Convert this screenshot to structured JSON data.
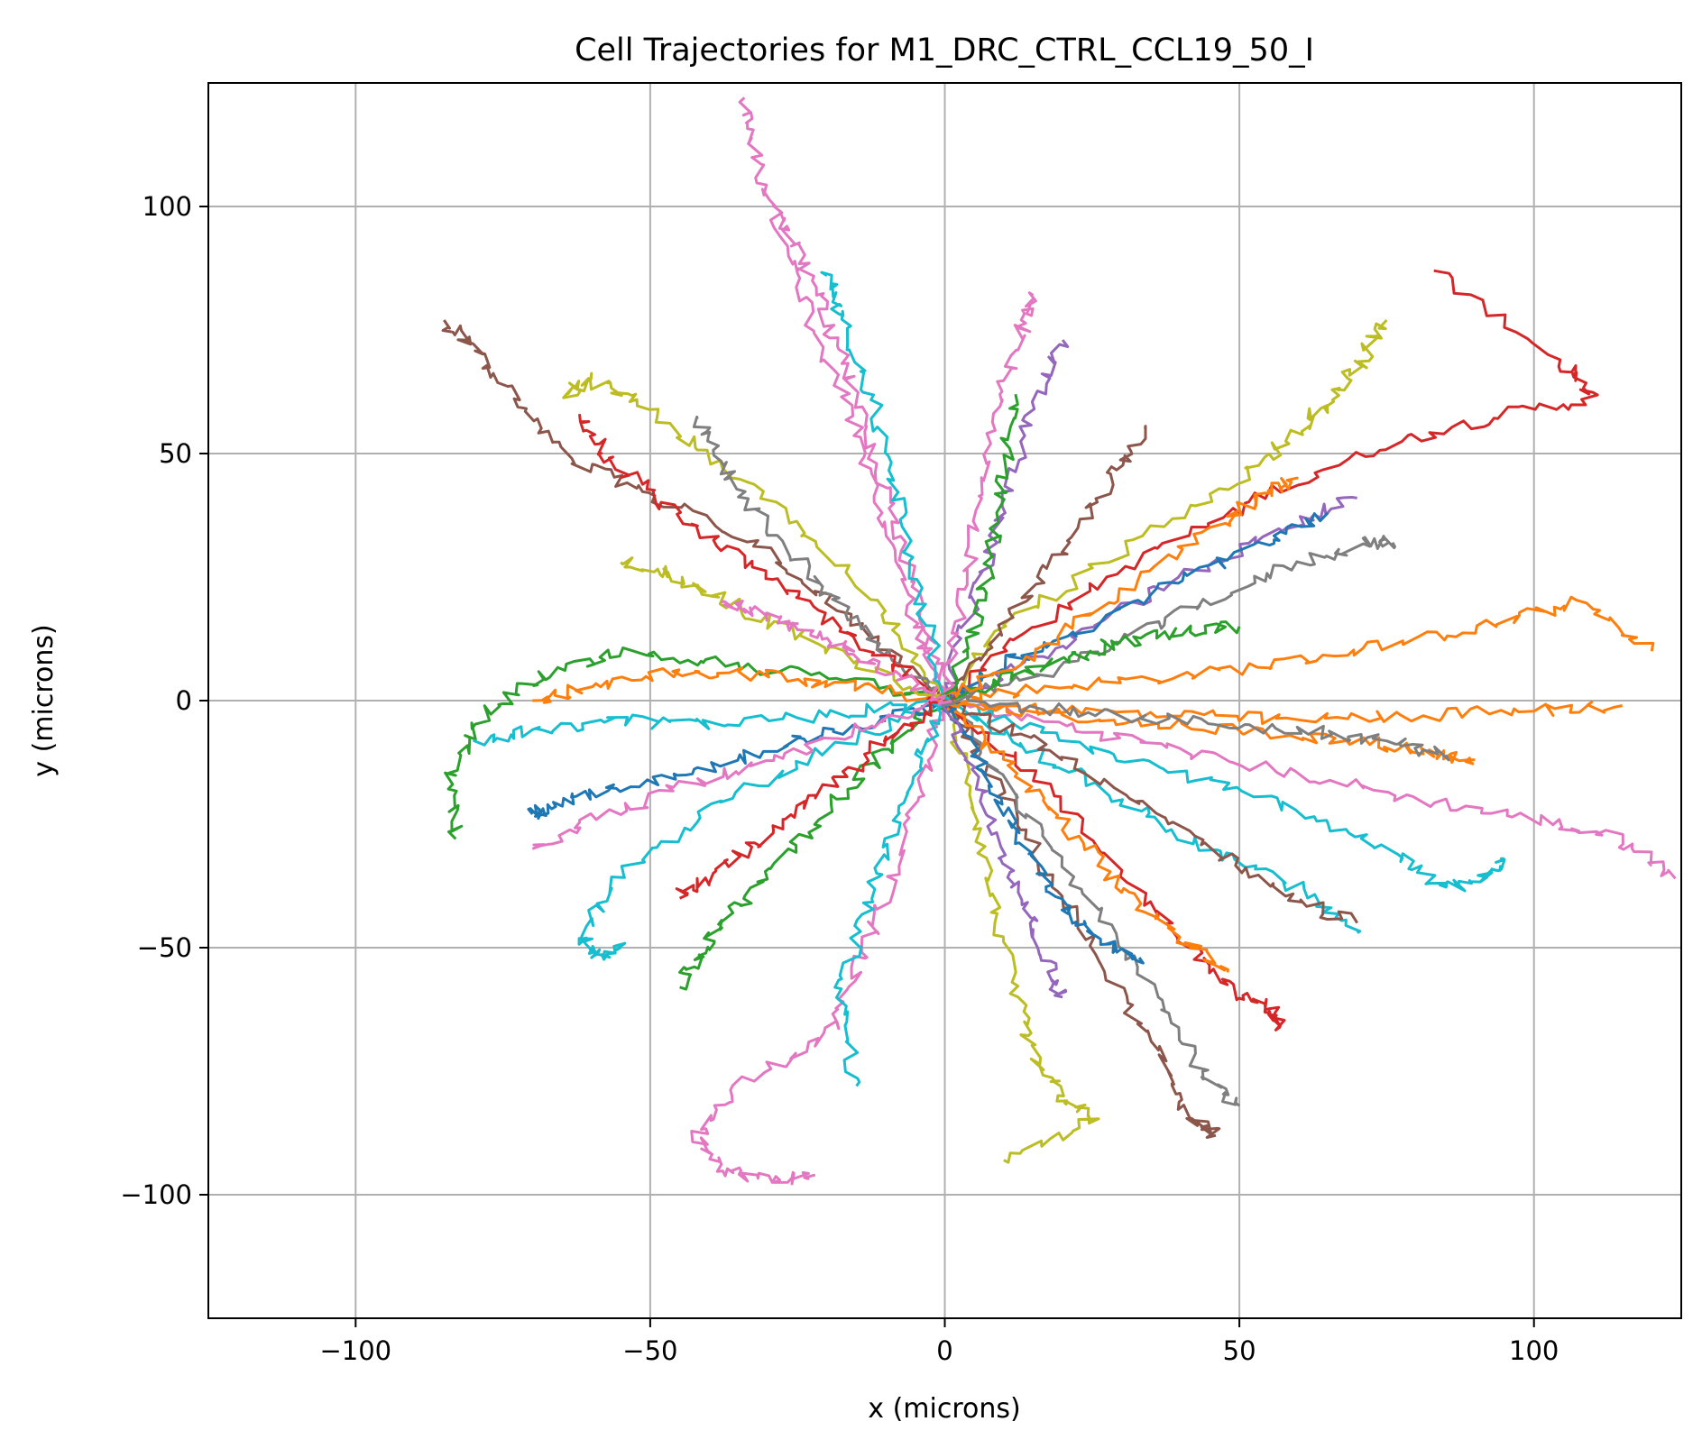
{
  "chart_data": {
    "type": "line",
    "title": "Cell Trajectories for M1_DRC_CTRL_CCL19_50_I",
    "xlabel": "x (microns)",
    "ylabel": "y (microns)",
    "xlim": [
      -125,
      125
    ],
    "ylim": [
      -125,
      125
    ],
    "xticks": [
      -100,
      -50,
      0,
      50,
      100
    ],
    "yticks": [
      -100,
      -50,
      0,
      50,
      100
    ],
    "xtick_labels": [
      "−100",
      "−50",
      "0",
      "50",
      "100"
    ],
    "ytick_labels": [
      "−100",
      "−50",
      "0",
      "50",
      "100"
    ],
    "grid": true,
    "legend": "none",
    "colors": [
      "#1f77b4",
      "#ff7f0e",
      "#2ca02c",
      "#d62728",
      "#9467bd",
      "#8c564b",
      "#e377c2",
      "#7f7f7f",
      "#bcbd22",
      "#17becf"
    ],
    "series": [
      {
        "color": "#e377c2",
        "x": [
          0,
          -5,
          -10,
          -15,
          -22,
          -28,
          -32,
          -34
        ],
        "y": [
          0,
          15,
          35,
          55,
          75,
          95,
          110,
          122
        ]
      },
      {
        "color": "#e377c2",
        "x": [
          0,
          -4,
          -9,
          -14,
          -19,
          -24,
          -28
        ],
        "y": [
          0,
          18,
          38,
          58,
          74,
          88,
          99
        ]
      },
      {
        "color": "#d62728",
        "x": [
          0,
          15,
          35,
          55,
          75,
          95,
          110,
          105,
          83
        ],
        "y": [
          0,
          15,
          30,
          42,
          52,
          58,
          61,
          68,
          87
        ]
      },
      {
        "color": "#8c564b",
        "x": [
          0,
          -15,
          -30,
          -50,
          -62,
          -72,
          -80,
          -85
        ],
        "y": [
          0,
          15,
          30,
          42,
          48,
          60,
          72,
          77
        ]
      },
      {
        "color": "#ff7f0e",
        "x": [
          0,
          20,
          40,
          60,
          78,
          95,
          108,
          120
        ],
        "y": [
          0,
          3,
          5,
          8,
          12,
          16,
          20,
          10
        ]
      },
      {
        "color": "#e377c2",
        "x": [
          0,
          20,
          40,
          60,
          80,
          100,
          115,
          124
        ],
        "y": [
          0,
          -5,
          -10,
          -15,
          -20,
          -24,
          -28,
          -36
        ]
      },
      {
        "color": "#e377c2",
        "x": [
          0,
          -5,
          -10,
          -15,
          -20,
          -35,
          -42,
          -38,
          -30,
          -22
        ],
        "y": [
          0,
          -20,
          -40,
          -55,
          -68,
          -78,
          -88,
          -95,
          -97,
          -96
        ]
      },
      {
        "color": "#2ca02c",
        "x": [
          0,
          -20,
          -40,
          -55,
          -68,
          -78,
          -84,
          -83
        ],
        "y": [
          0,
          5,
          8,
          10,
          5,
          -2,
          -15,
          -28
        ]
      },
      {
        "color": "#17becf",
        "x": [
          0,
          -20,
          -40,
          -55,
          -62,
          -58,
          -55
        ],
        "y": [
          0,
          -10,
          -22,
          -35,
          -48,
          -52,
          -50
        ]
      },
      {
        "color": "#17becf",
        "x": [
          0,
          20,
          40,
          60,
          75,
          85,
          92,
          95
        ],
        "y": [
          0,
          -8,
          -15,
          -22,
          -30,
          -38,
          -36,
          -32
        ]
      },
      {
        "color": "#bcbd22",
        "x": [
          0,
          -10,
          -25,
          -40,
          -52,
          -60,
          -64
        ],
        "y": [
          0,
          18,
          35,
          50,
          60,
          65,
          62
        ]
      },
      {
        "color": "#bcbd22",
        "x": [
          0,
          10,
          30,
          50,
          60,
          65,
          70,
          75
        ],
        "y": [
          0,
          15,
          30,
          45,
          55,
          60,
          68,
          77
        ]
      },
      {
        "color": "#bcbd22",
        "x": [
          0,
          5,
          8,
          12,
          15,
          20,
          25,
          10
        ],
        "y": [
          0,
          -20,
          -40,
          -60,
          -72,
          -80,
          -85,
          -93
        ]
      },
      {
        "color": "#8c564b",
        "x": [
          0,
          10,
          20,
          30,
          38,
          42,
          46
        ],
        "y": [
          0,
          -20,
          -40,
          -60,
          -75,
          -85,
          -88
        ]
      },
      {
        "color": "#7f7f7f",
        "x": [
          0,
          12,
          24,
          36,
          44,
          50
        ],
        "y": [
          0,
          -20,
          -40,
          -60,
          -75,
          -82
        ]
      },
      {
        "color": "#d62728",
        "x": [
          0,
          15,
          30,
          42,
          50,
          55,
          57
        ],
        "y": [
          0,
          -15,
          -35,
          -50,
          -60,
          -62,
          -66
        ]
      },
      {
        "color": "#9467bd",
        "x": [
          0,
          5,
          10,
          15,
          20
        ],
        "y": [
          0,
          20,
          40,
          60,
          73
        ]
      },
      {
        "color": "#e377c2",
        "x": [
          0,
          3,
          6,
          9,
          13,
          15
        ],
        "y": [
          0,
          20,
          40,
          60,
          75,
          82
        ]
      },
      {
        "color": "#17becf",
        "x": [
          0,
          -4,
          -8,
          -12,
          -18,
          -20
        ],
        "y": [
          0,
          20,
          40,
          60,
          78,
          86
        ]
      },
      {
        "color": "#7f7f7f",
        "x": [
          0,
          15,
          30,
          45,
          60,
          72,
          76
        ],
        "y": [
          0,
          5,
          12,
          20,
          28,
          32,
          32
        ]
      },
      {
        "color": "#ff7f0e",
        "x": [
          0,
          20,
          40,
          60,
          80,
          100,
          115
        ],
        "y": [
          0,
          -2,
          -3,
          -4,
          -3,
          -2,
          -1
        ]
      },
      {
        "color": "#9467bd",
        "x": [
          0,
          15,
          30,
          45,
          60,
          70
        ],
        "y": [
          0,
          8,
          18,
          28,
          36,
          41
        ]
      },
      {
        "color": "#1f77b4",
        "x": [
          0,
          10,
          25,
          40,
          55,
          65
        ],
        "y": [
          0,
          8,
          15,
          25,
          32,
          38
        ]
      },
      {
        "color": "#2ca02c",
        "x": [
          0,
          -10,
          -20,
          -30,
          -38,
          -42,
          -45
        ],
        "y": [
          0,
          -10,
          -22,
          -35,
          -45,
          -52,
          -58
        ]
      },
      {
        "color": "#1f77b4",
        "x": [
          0,
          -15,
          -30,
          -45,
          -58,
          -68,
          -70
        ],
        "y": [
          0,
          -5,
          -10,
          -15,
          -18,
          -22,
          -23
        ]
      },
      {
        "color": "#7f7f7f",
        "x": [
          0,
          -10,
          -20,
          -30,
          -38,
          -42
        ],
        "y": [
          0,
          10,
          22,
          35,
          48,
          57
        ]
      },
      {
        "color": "#ff7f0e",
        "x": [
          0,
          -15,
          -30,
          -45,
          -60,
          -70
        ],
        "y": [
          0,
          3,
          5,
          6,
          3,
          0
        ]
      },
      {
        "color": "#d62728",
        "x": [
          0,
          -12,
          -24,
          -36,
          -48,
          -58,
          -62
        ],
        "y": [
          0,
          10,
          20,
          30,
          40,
          50,
          58
        ]
      },
      {
        "color": "#17becf",
        "x": [
          0,
          -20,
          -40,
          -55,
          -70,
          -80
        ],
        "y": [
          0,
          -3,
          -5,
          -4,
          -6,
          -8
        ]
      },
      {
        "color": "#e377c2",
        "x": [
          0,
          -15,
          -30,
          -45,
          -60,
          -70
        ],
        "y": [
          0,
          -6,
          -12,
          -18,
          -24,
          -30
        ]
      },
      {
        "color": "#2ca02c",
        "x": [
          0,
          10,
          20,
          30,
          40,
          50
        ],
        "y": [
          0,
          4,
          8,
          12,
          14,
          15
        ]
      },
      {
        "color": "#8c564b",
        "x": [
          0,
          10,
          20,
          28,
          34
        ],
        "y": [
          0,
          15,
          30,
          45,
          55
        ]
      },
      {
        "color": "#ff7f0e",
        "x": [
          0,
          15,
          30,
          45,
          55,
          60
        ],
        "y": [
          0,
          10,
          22,
          35,
          42,
          45
        ]
      },
      {
        "color": "#17becf",
        "x": [
          0,
          15,
          30,
          45,
          60,
          70
        ],
        "y": [
          0,
          -10,
          -20,
          -30,
          -38,
          -47
        ]
      },
      {
        "color": "#8c564b",
        "x": [
          0,
          15,
          30,
          45,
          58,
          70
        ],
        "y": [
          0,
          -8,
          -18,
          -30,
          -40,
          -45
        ]
      },
      {
        "color": "#ff7f0e",
        "x": [
          0,
          10,
          20,
          30,
          40,
          48
        ],
        "y": [
          0,
          -12,
          -25,
          -38,
          -48,
          -55
        ]
      },
      {
        "color": "#bcbd22",
        "x": [
          0,
          -15,
          -30,
          -40,
          -48,
          -55
        ],
        "y": [
          0,
          8,
          16,
          22,
          26,
          28
        ]
      },
      {
        "color": "#d62728",
        "x": [
          0,
          -10,
          -20,
          -30,
          -40,
          -45
        ],
        "y": [
          0,
          -8,
          -18,
          -28,
          -35,
          -40
        ]
      },
      {
        "color": "#1f77b4",
        "x": [
          0,
          5,
          10,
          16,
          22,
          28,
          33
        ],
        "y": [
          0,
          -10,
          -22,
          -34,
          -44,
          -50,
          -52
        ]
      },
      {
        "color": "#17becf",
        "x": [
          0,
          -5,
          -10,
          -14,
          -18,
          -15
        ],
        "y": [
          0,
          -15,
          -30,
          -45,
          -60,
          -78
        ]
      },
      {
        "color": "#9467bd",
        "x": [
          0,
          5,
          10,
          14,
          18,
          20
        ],
        "y": [
          0,
          -15,
          -30,
          -42,
          -55,
          -60
        ]
      },
      {
        "color": "#2ca02c",
        "x": [
          0,
          5,
          8,
          10,
          12
        ],
        "y": [
          0,
          15,
          30,
          45,
          62
        ]
      },
      {
        "color": "#ff7f0e",
        "x": [
          0,
          20,
          40,
          60,
          75,
          85,
          90
        ],
        "y": [
          0,
          -3,
          -5,
          -7,
          -9,
          -11,
          -12
        ]
      },
      {
        "color": "#7f7f7f",
        "x": [
          0,
          20,
          40,
          60,
          75,
          85
        ],
        "y": [
          0,
          -2,
          -4,
          -6,
          -8,
          -11
        ]
      },
      {
        "color": "#e377c2",
        "x": [
          0,
          -8,
          -16,
          -24,
          -32,
          -38
        ],
        "y": [
          0,
          5,
          10,
          15,
          18,
          20
        ]
      }
    ]
  }
}
